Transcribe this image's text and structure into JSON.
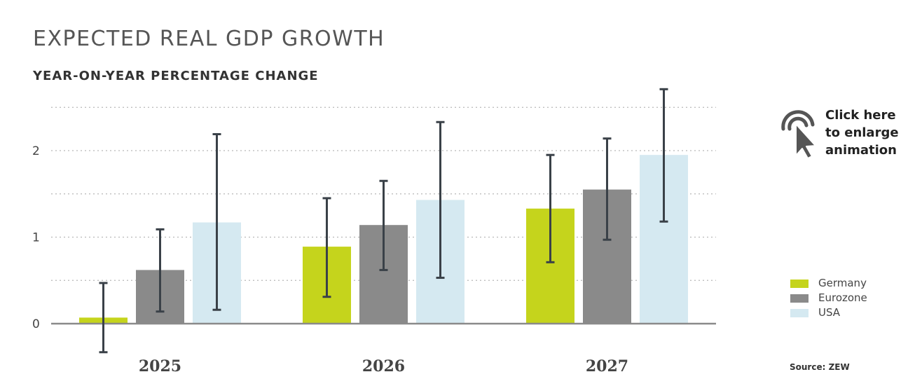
{
  "chart_data": {
    "type": "bar",
    "title": "EXPECTED REAL GDP GROWTH",
    "subtitle": "YEAR-ON-YEAR PERCENTAGE CHANGE",
    "categories": [
      "2025",
      "2026",
      "2027"
    ],
    "series": [
      {
        "name": "Germany",
        "color": "#c5d41c",
        "values": [
          0.07,
          0.89,
          1.33
        ],
        "error_low": [
          -0.33,
          0.31,
          0.71
        ],
        "error_high": [
          0.47,
          1.45,
          1.95
        ]
      },
      {
        "name": "Eurozone",
        "color": "#8a8a8a",
        "values": [
          0.62,
          1.14,
          1.55
        ],
        "error_low": [
          0.14,
          0.62,
          0.97
        ],
        "error_high": [
          1.09,
          1.65,
          2.14
        ]
      },
      {
        "name": "USA",
        "color": "#d5e9f1",
        "values": [
          1.17,
          1.43,
          1.95
        ],
        "error_low": [
          0.16,
          0.53,
          1.18
        ],
        "error_high": [
          2.19,
          2.33,
          2.71
        ]
      }
    ],
    "y_ticks": [
      "0",
      "1",
      "2"
    ],
    "ylim": [
      0,
      2.5
    ],
    "grid": true,
    "legend_position": "right"
  },
  "enlarge": {
    "line1": "Click here",
    "line2": "to enlarge",
    "line3": "animation",
    "icon": "pointer-click-icon"
  },
  "source": "Source: ZEW"
}
